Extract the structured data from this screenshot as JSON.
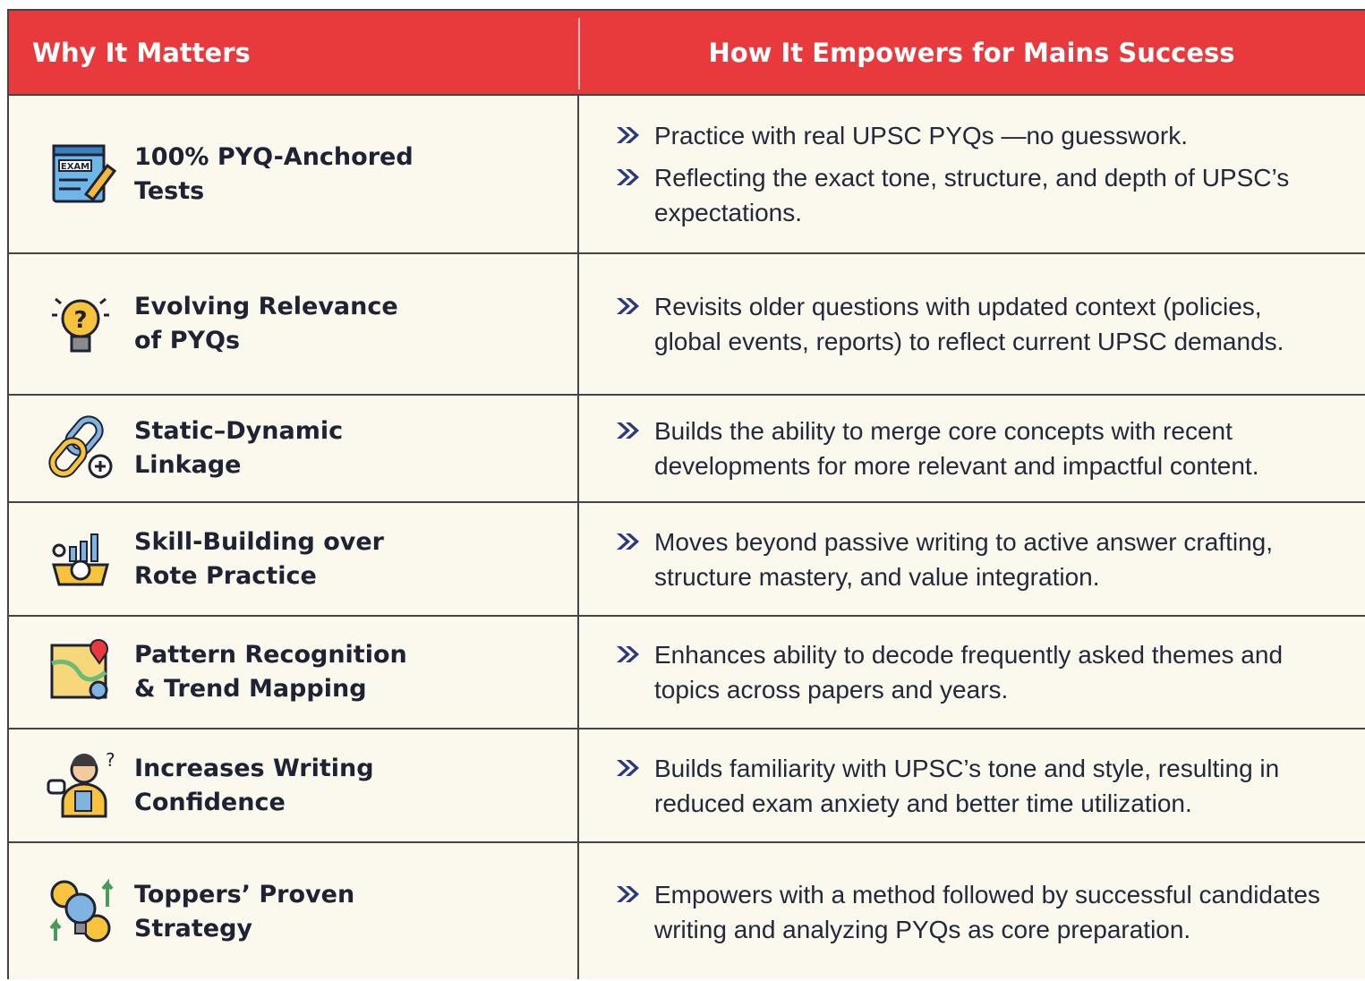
{
  "header": {
    "columns": [
      "Why It Matters",
      "How It Empowers for Mains Success"
    ]
  },
  "rows": [
    {
      "icon_label": "EXAM",
      "title": "100% PYQ-Anchored Tests",
      "points": [
        "Practice with real UPSC PYQs —no guesswork.",
        "Reflecting the exact tone, structure, and depth of UPSC’s expectations."
      ]
    },
    {
      "title": "Evolving Relevance of PYQs",
      "points": [
        "Revisits older questions with updated context (policies, global events, reports) to reflect current UPSC demands."
      ]
    },
    {
      "title": "Static–Dynamic Linkage",
      "points": [
        "Builds the ability to merge core concepts with recent developments for more relevant and impactful content."
      ]
    },
    {
      "title": "Skill-Building over Rote Practice",
      "points": [
        "Moves beyond passive writing to active answer crafting, structure mastery, and value integration."
      ]
    },
    {
      "title": "Pattern Recognition & Trend Mapping",
      "points": [
        "Enhances ability to decode frequently asked themes and topics across papers and years."
      ]
    },
    {
      "title": "Increases Writing Confidence",
      "points": [
        "Builds familiarity with UPSC’s tone and style, resulting in reduced exam anxiety and better time utilization."
      ]
    },
    {
      "title": "Toppers’ Proven Strategy",
      "points": [
        "Empowers with a method followed by successful candidates writing and analyzing PYQs as core preparation."
      ]
    }
  ]
}
